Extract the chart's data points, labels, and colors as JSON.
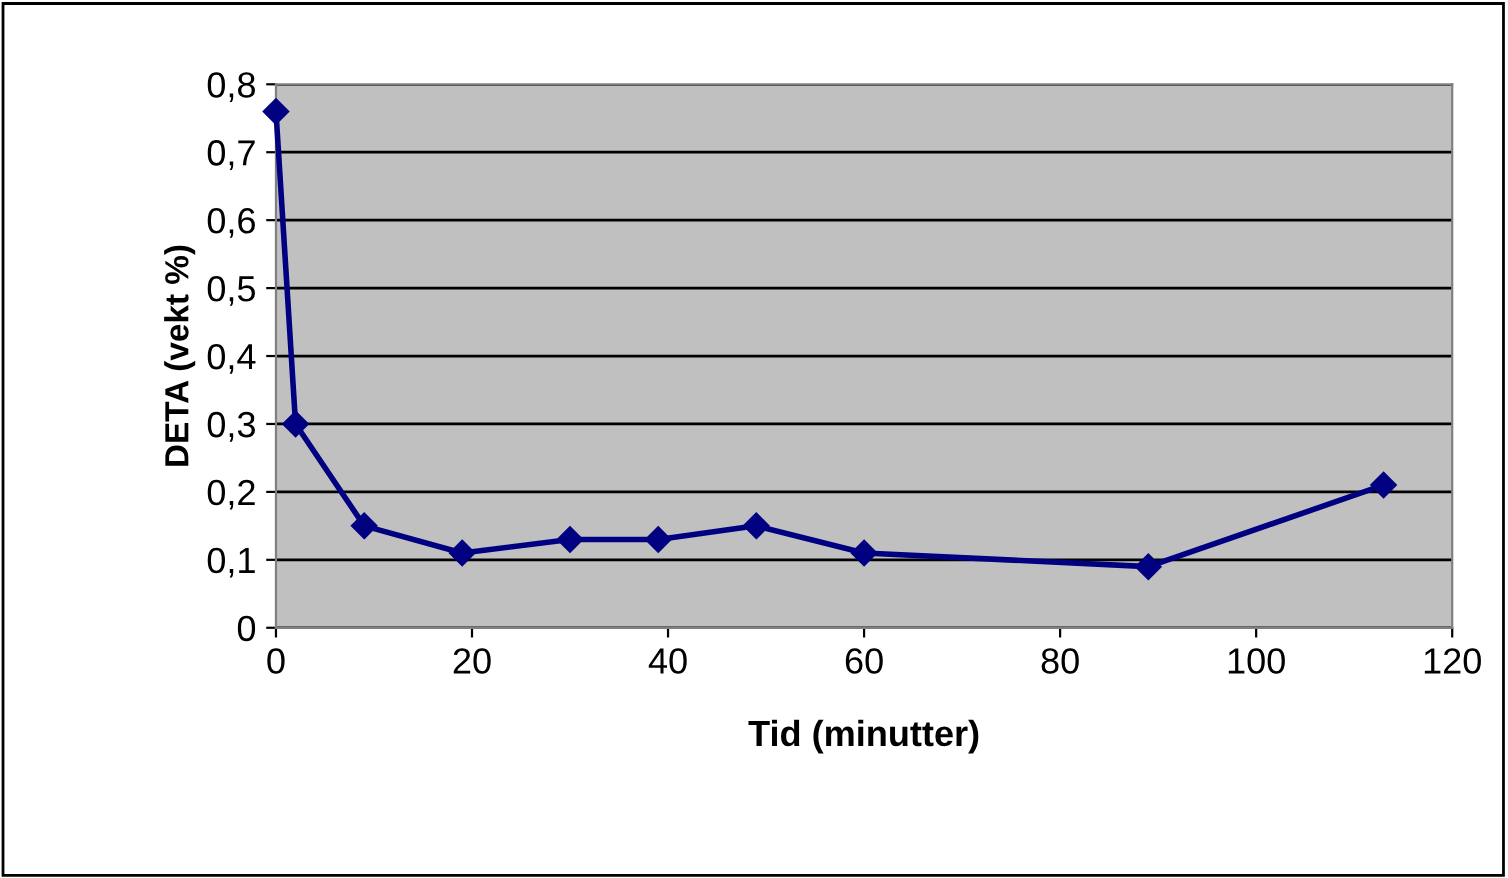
{
  "chart_data": {
    "type": "line",
    "xlabel": "Tid (minutter)",
    "ylabel": "DETA (vekt %)",
    "x": [
      0,
      2,
      9,
      19,
      30,
      39,
      49,
      60,
      89,
      113
    ],
    "series": [
      {
        "color": "#000080",
        "values": [
          0.76,
          0.3,
          0.15,
          0.11,
          0.13,
          0.13,
          0.15,
          0.11,
          0.09,
          0.21
        ]
      }
    ],
    "xlim": [
      0,
      120
    ],
    "xticks": [
      0,
      20,
      40,
      60,
      80,
      100,
      120
    ],
    "ylim": [
      0,
      0.8
    ],
    "yticks": [
      0,
      {
        "value": 0.1,
        "label": "0,1"
      },
      {
        "value": 0.2,
        "label": "0,2"
      },
      {
        "value": 0.3,
        "label": "0,3"
      },
      {
        "value": 0.4,
        "label": "0,4"
      },
      {
        "value": 0.5,
        "label": "0,5"
      },
      {
        "value": 0.6,
        "label": "0,6"
      },
      {
        "value": 0.7,
        "label": "0,7"
      },
      {
        "value": 0.8,
        "label": "0,8"
      }
    ],
    "grid": "y",
    "marker": "diamond",
    "line_style": "solid",
    "legend": false
  }
}
